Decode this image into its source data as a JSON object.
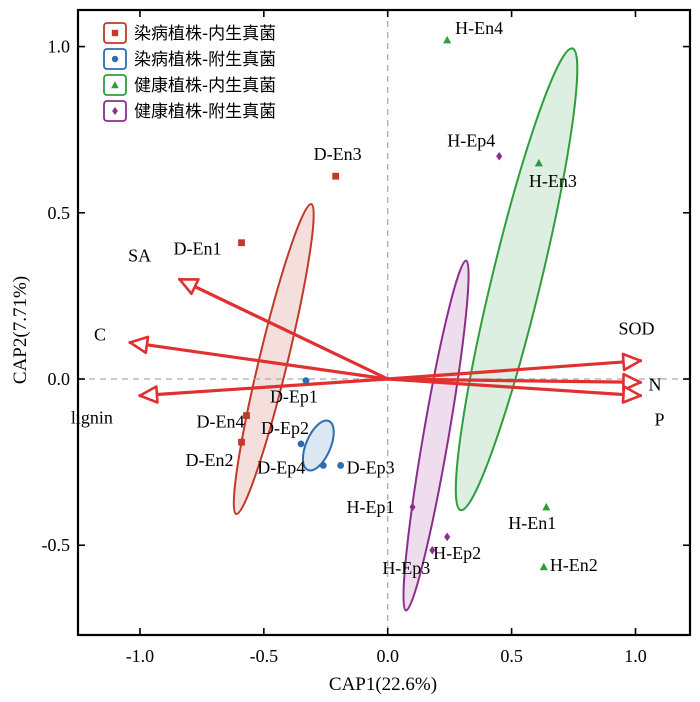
{
  "chart_data": {
    "type": "scatter",
    "xlabel": "CAP1(22.6%)",
    "ylabel": "CAP2(7.71%)",
    "xlim": [
      -1.25,
      1.22
    ],
    "ylim": [
      -0.77,
      1.11
    ],
    "xticks": [
      -1.0,
      -0.5,
      0.0,
      0.5,
      1.0
    ],
    "yticks": [
      -0.5,
      0.0,
      0.5,
      1.0
    ],
    "xtick_labels": [
      "-1.0",
      "-0.5",
      "0.0",
      "0.5",
      "1.0"
    ],
    "ytick_labels": [
      "-0.5",
      "0.0",
      "0.5",
      "1.0"
    ],
    "grid": false,
    "reference_lines": "dashed lines at x=0 and y=0",
    "legend_position": "top-left",
    "series": [
      {
        "name": "染病植株-内生真菌",
        "color": "#c0392b",
        "marker": "square",
        "points": [
          {
            "label": "D-En1",
            "x": -0.59,
            "y": 0.41
          },
          {
            "label": "D-En2",
            "x": -0.59,
            "y": -0.19
          },
          {
            "label": "D-En3",
            "x": -0.21,
            "y": 0.61
          },
          {
            "label": "D-En4",
            "x": -0.57,
            "y": -0.11
          }
        ],
        "ellipse": {
          "cx": -0.46,
          "cy": 0.06,
          "rx": 0.49,
          "ry": 0.055,
          "angle_deg": 72
        }
      },
      {
        "name": "染病植株-附生真菌",
        "color": "#2c6cb0",
        "marker": "circle",
        "points": [
          {
            "label": "D-Ep1",
            "x": -0.33,
            "y": -0.005
          },
          {
            "label": "D-Ep2",
            "x": -0.35,
            "y": -0.195
          },
          {
            "label": "D-Ep3",
            "x": -0.19,
            "y": -0.26
          },
          {
            "label": "D-Ep4",
            "x": -0.26,
            "y": -0.26
          }
        ],
        "ellipse": {
          "cx": -0.28,
          "cy": -0.2,
          "rx": 0.085,
          "ry": 0.045,
          "angle_deg": 60
        }
      },
      {
        "name": "健康植株-内生真菌",
        "color": "#2e9e3e",
        "marker": "triangle",
        "points": [
          {
            "label": "H-En1",
            "x": 0.64,
            "y": -0.385
          },
          {
            "label": "H-En2",
            "x": 0.63,
            "y": -0.565
          },
          {
            "label": "H-En3",
            "x": 0.61,
            "y": 0.65
          },
          {
            "label": "H-En4",
            "x": 0.24,
            "y": 1.02
          }
        ],
        "ellipse": {
          "cx": 0.52,
          "cy": 0.3,
          "rx": 0.73,
          "ry": 0.095,
          "angle_deg": 72
        }
      },
      {
        "name": "健康植株-附生真菌",
        "color": "#8e2c8e",
        "marker": "diamond",
        "points": [
          {
            "label": "H-Ep1",
            "x": 0.1,
            "y": -0.385
          },
          {
            "label": "H-Ep2",
            "x": 0.24,
            "y": -0.475
          },
          {
            "label": "H-Ep3",
            "x": 0.18,
            "y": -0.515
          },
          {
            "label": "H-Ep4",
            "x": 0.45,
            "y": 0.67
          }
        ],
        "ellipse": {
          "cx": 0.195,
          "cy": -0.17,
          "rx": 0.54,
          "ry": 0.05,
          "angle_deg": 77
        }
      }
    ],
    "vectors": [
      {
        "label": "SA",
        "x": -0.84,
        "y": 0.3
      },
      {
        "label": "C",
        "x": -1.04,
        "y": 0.11
      },
      {
        "label": "lignin",
        "x": -1.0,
        "y": -0.05
      },
      {
        "label": "SOD",
        "x": 1.02,
        "y": 0.055
      },
      {
        "label": "N",
        "x": 1.02,
        "y": -0.01
      },
      {
        "label": "P",
        "x": 1.02,
        "y": -0.05
      }
    ],
    "vector_color": "#e03030"
  }
}
